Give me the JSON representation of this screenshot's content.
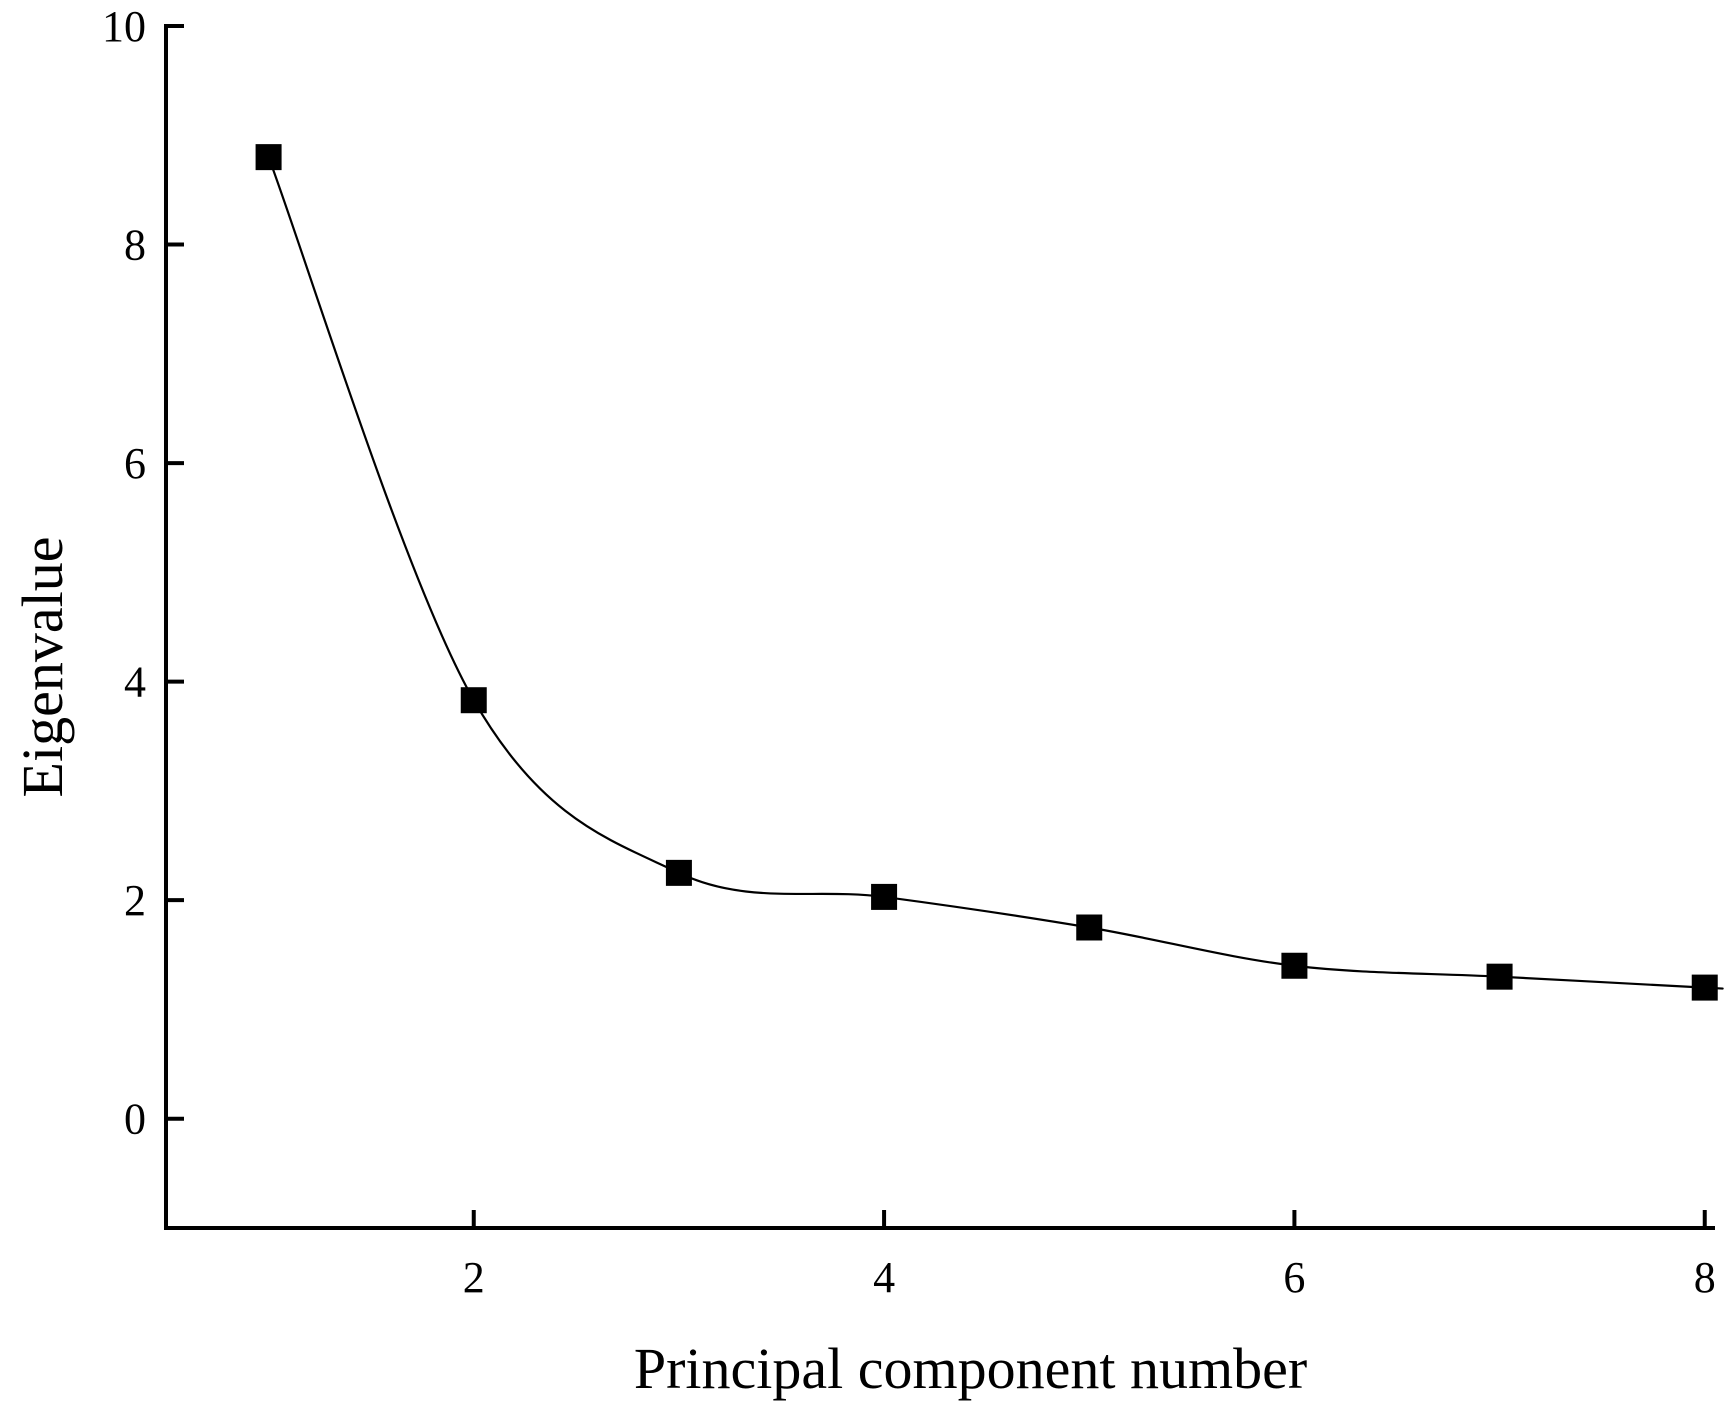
{
  "chart_data": {
    "type": "line",
    "xlabel": "Principal component number",
    "ylabel": "Eigenvalue",
    "xlim": [
      0.5,
      8.05
    ],
    "ylim": [
      -1,
      10
    ],
    "xticks": [
      2,
      4,
      6,
      8
    ],
    "yticks": [
      0,
      2,
      4,
      6,
      8,
      10
    ],
    "grid": false,
    "marker": "square",
    "line_style": "smooth",
    "color": "#000000",
    "series": [
      {
        "x": [
          1,
          2,
          3,
          4,
          5,
          6,
          7,
          8
        ],
        "values": [
          8.8,
          3.83,
          2.25,
          2.03,
          1.75,
          1.4,
          1.3,
          1.2
        ]
      }
    ]
  }
}
